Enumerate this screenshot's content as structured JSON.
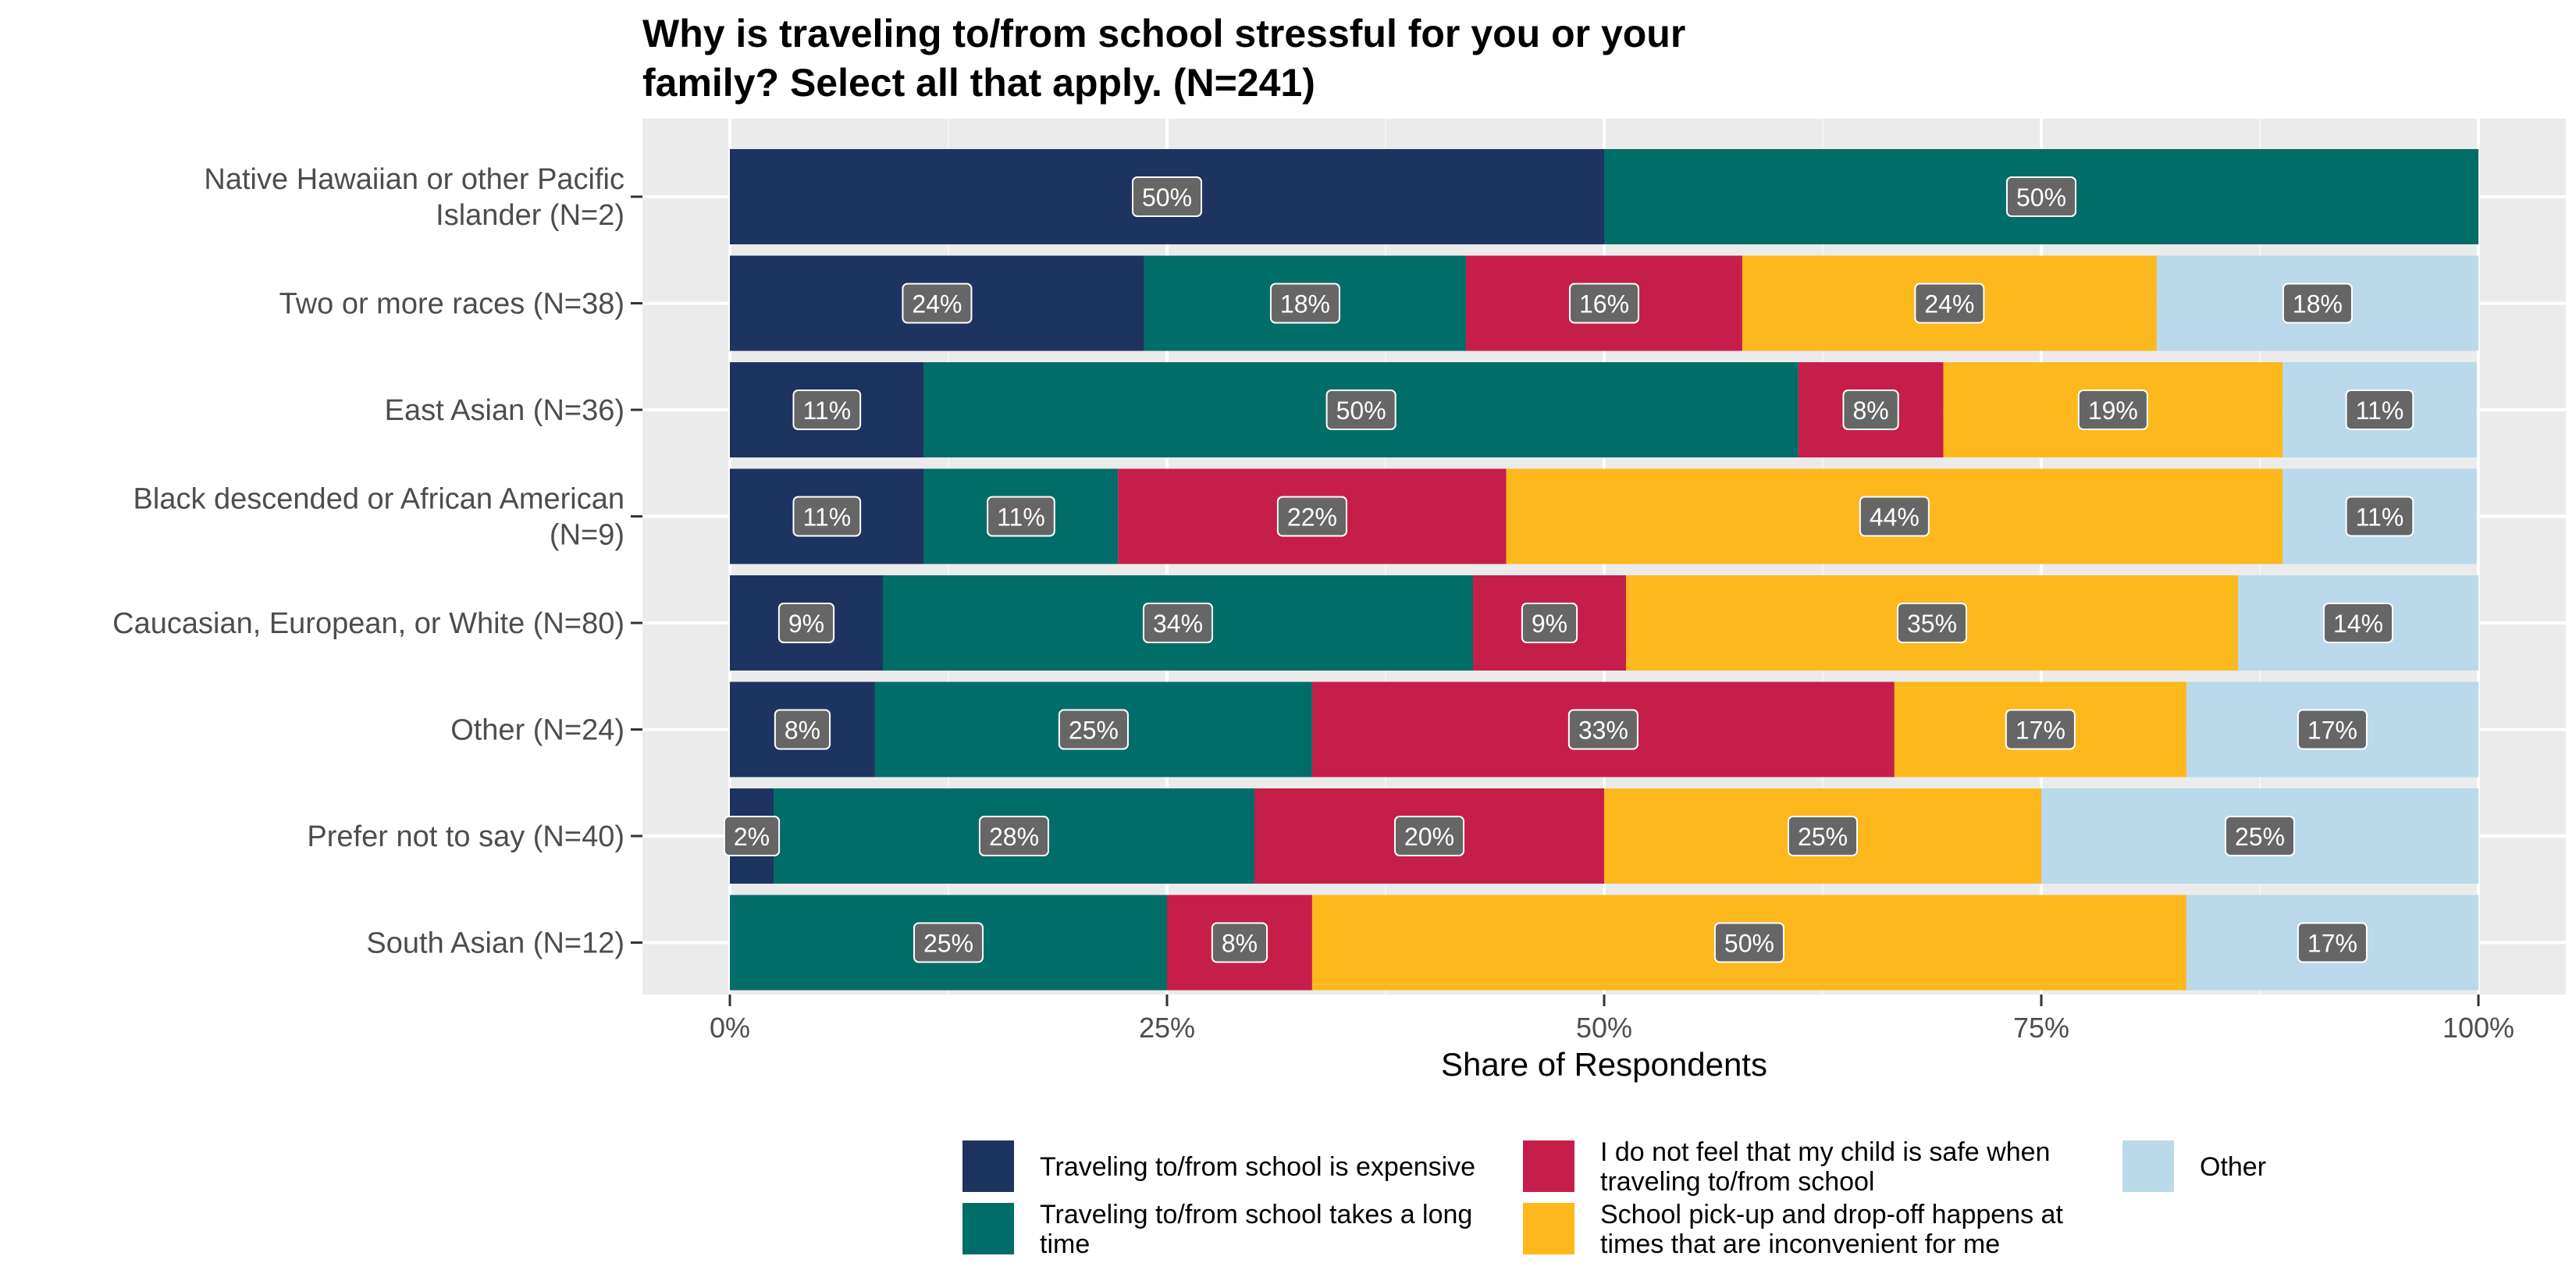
{
  "chart_data": {
    "type": "bar",
    "orientation": "horizontal",
    "stacked": true,
    "title": "Why is traveling to/from school stressful for you or your family? Select all that apply. (N=241)",
    "title_lines": [
      "Why is traveling to/from school stressful for you or your",
      "family? Select all that apply. (N=241)"
    ],
    "xlabel": "Share of Respondents",
    "ylabel": "",
    "xlim": [
      0,
      100
    ],
    "x_ticks": [
      0,
      25,
      50,
      75,
      100
    ],
    "x_tick_labels": [
      "0%",
      "25%",
      "50%",
      "75%",
      "100%"
    ],
    "grid": true,
    "legend_position": "bottom",
    "categories": [
      "Native Hawaiian or other Pacific Islander (N=2)",
      "Two or more races (N=38)",
      "East Asian (N=36)",
      "Black descended or African American (N=9)",
      "Caucasian, European, or White (N=80)",
      "Other (N=24)",
      "Prefer not to say (N=40)",
      "South Asian (N=12)"
    ],
    "category_label_lines": [
      [
        "Native Hawaiian or other Pacific",
        "Islander (N=2)"
      ],
      [
        "Two or more races (N=38)"
      ],
      [
        "East Asian (N=36)"
      ],
      [
        "Black descended or African American",
        "(N=9)"
      ],
      [
        "Caucasian, European, or White (N=80)"
      ],
      [
        "Other (N=24)"
      ],
      [
        "Prefer not to say (N=40)"
      ],
      [
        "South Asian (N=12)"
      ]
    ],
    "series": [
      {
        "name": "Traveling to/from school is expensive",
        "legend_lines": [
          "Traveling to/from school is expensive"
        ],
        "color": "#1d3461",
        "values": [
          50,
          23.7,
          11.1,
          11.1,
          8.75,
          8.3,
          2.5,
          0
        ],
        "labels": [
          "50%",
          "24%",
          "11%",
          "11%",
          "9%",
          "8%",
          "2%",
          ""
        ]
      },
      {
        "name": "Traveling to/from school takes a long time",
        "legend_lines": [
          "Traveling to/from school takes a long",
          "time"
        ],
        "color": "#006d69",
        "values": [
          50,
          18.4,
          50,
          11.1,
          33.75,
          25,
          27.5,
          25
        ],
        "labels": [
          "50%",
          "18%",
          "50%",
          "11%",
          "34%",
          "25%",
          "28%",
          "25%"
        ]
      },
      {
        "name": "I do not feel that my child is safe when traveling to/from school",
        "legend_lines": [
          "I do not feel that my child is safe when",
          "traveling to/from school"
        ],
        "color": "#c61e4a",
        "values": [
          0,
          15.8,
          8.3,
          22.2,
          8.75,
          33.3,
          20,
          8.3
        ],
        "labels": [
          "",
          "16%",
          "8%",
          "22%",
          "9%",
          "33%",
          "20%",
          "8%"
        ]
      },
      {
        "name": "School pick-up and drop-off happens at times that are inconvenient for me",
        "legend_lines": [
          "School pick-up and drop-off happens at",
          "times that are inconvenient for me"
        ],
        "color": "#fdb81e",
        "values": [
          0,
          23.7,
          19.4,
          44.4,
          35,
          16.7,
          25,
          50
        ],
        "labels": [
          "",
          "24%",
          "19%",
          "44%",
          "35%",
          "17%",
          "25%",
          "50%"
        ]
      },
      {
        "name": "Other",
        "legend_lines": [
          "Other"
        ],
        "color": "#bad9eb",
        "values": [
          0,
          18.4,
          11.1,
          11.1,
          13.75,
          16.7,
          25,
          16.7
        ],
        "labels": [
          "",
          "18%",
          "11%",
          "11%",
          "14%",
          "17%",
          "25%",
          "17%"
        ]
      }
    ]
  }
}
